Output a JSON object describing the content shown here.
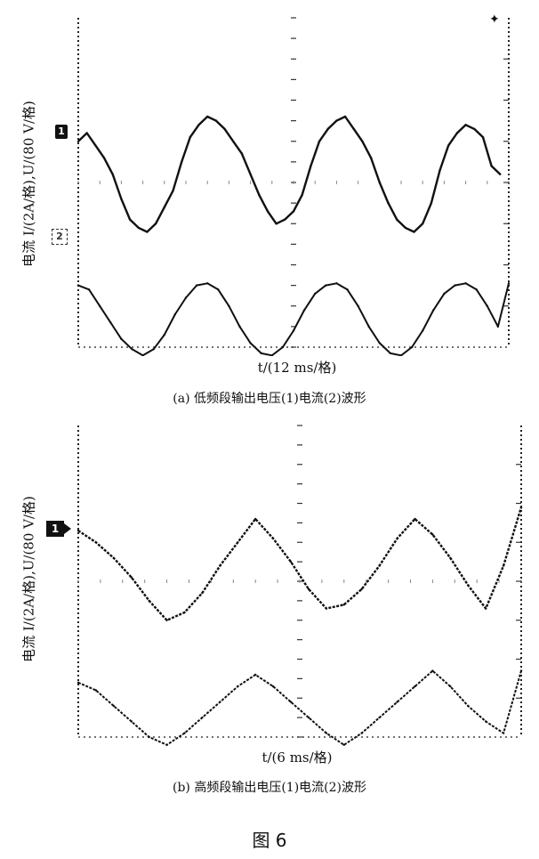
{
  "chart_data": [
    {
      "type": "line",
      "panel": "a",
      "xlabel": "t/(12 ms/格)",
      "ylabel": "电流 I/(2A/格),U/(80 V/格)",
      "caption": "(a) 低频段输出电压(1)电流(2)波形",
      "x_divisions": 10,
      "y_divisions": 8,
      "grid": "dotted center graticule",
      "markers": [
        "1",
        "2"
      ],
      "series": [
        {
          "name": "1",
          "x": [
            0,
            0.2,
            0.4,
            0.6,
            0.8,
            1.0,
            1.2,
            1.4,
            1.6,
            1.8,
            2.0,
            2.2,
            2.4,
            2.6,
            2.8,
            3.0,
            3.2,
            3.4,
            3.6,
            3.8,
            4.0,
            4.2,
            4.4,
            4.6,
            4.8,
            5.0,
            5.2,
            5.4,
            5.6,
            5.8,
            6.0,
            6.2,
            6.4,
            6.6,
            6.8,
            7.0,
            7.2,
            7.4,
            7.6,
            7.8,
            8.0,
            8.2,
            8.4,
            8.6,
            8.8,
            9.0,
            9.2,
            9.4,
            9.6,
            9.8
          ],
          "y": [
            1.0,
            1.2,
            0.9,
            0.6,
            0.2,
            -0.4,
            -0.9,
            -1.1,
            -1.2,
            -1.0,
            -0.6,
            -0.2,
            0.5,
            1.1,
            1.4,
            1.6,
            1.5,
            1.3,
            1.0,
            0.7,
            0.2,
            -0.3,
            -0.7,
            -1.0,
            -0.9,
            -0.7,
            -0.3,
            0.4,
            1.0,
            1.3,
            1.5,
            1.6,
            1.3,
            1.0,
            0.6,
            0.0,
            -0.5,
            -0.9,
            -1.1,
            -1.2,
            -1.0,
            -0.5,
            0.3,
            0.9,
            1.2,
            1.4,
            1.3,
            1.1,
            0.4,
            0.2
          ]
        },
        {
          "name": "2",
          "x": [
            0,
            0.25,
            0.5,
            0.75,
            1.0,
            1.25,
            1.5,
            1.75,
            2.0,
            2.25,
            2.5,
            2.75,
            3.0,
            3.25,
            3.5,
            3.75,
            4.0,
            4.25,
            4.5,
            4.75,
            5.0,
            5.25,
            5.5,
            5.75,
            6.0,
            6.25,
            6.5,
            6.75,
            7.0,
            7.25,
            7.5,
            7.75,
            8.0,
            8.25,
            8.5,
            8.75,
            9.0,
            9.25,
            9.5,
            9.75,
            10.0
          ],
          "y": [
            -2.5,
            -2.6,
            -3.0,
            -3.4,
            -3.8,
            -4.05,
            -4.2,
            -4.05,
            -3.7,
            -3.2,
            -2.8,
            -2.5,
            -2.45,
            -2.6,
            -3.0,
            -3.5,
            -3.9,
            -4.15,
            -4.2,
            -4.0,
            -3.6,
            -3.1,
            -2.7,
            -2.5,
            -2.45,
            -2.6,
            -3.0,
            -3.5,
            -3.9,
            -4.15,
            -4.2,
            -4.0,
            -3.6,
            -3.1,
            -2.7,
            -2.5,
            -2.45,
            -2.6,
            -3.0,
            -3.5,
            -2.45
          ]
        }
      ]
    },
    {
      "type": "line",
      "panel": "b",
      "xlabel": "t/(6 ms/格)",
      "ylabel": "电流 I/(2A/格),U/(80 V/格)",
      "caption": "(b) 高频段输出电压(1)电流(2)波形",
      "x_divisions": 10,
      "y_divisions": 8,
      "grid": "dotted center graticule",
      "markers": [
        "1"
      ],
      "series": [
        {
          "name": "1",
          "x": [
            0,
            0.4,
            0.8,
            1.2,
            1.6,
            2.0,
            2.4,
            2.8,
            3.2,
            3.6,
            4.0,
            4.4,
            4.8,
            5.2,
            5.6,
            6.0,
            6.4,
            6.8,
            7.2,
            7.6,
            8.0,
            8.4,
            8.8,
            9.2,
            9.6,
            10.0
          ],
          "y": [
            1.3,
            1.0,
            0.6,
            0.1,
            -0.5,
            -1.0,
            -0.8,
            -0.3,
            0.4,
            1.0,
            1.6,
            1.1,
            0.5,
            -0.2,
            -0.7,
            -0.6,
            -0.2,
            0.4,
            1.1,
            1.6,
            1.2,
            0.6,
            -0.1,
            -0.7,
            0.4,
            1.9
          ]
        },
        {
          "name": "2",
          "x": [
            0,
            0.4,
            0.8,
            1.2,
            1.6,
            2.0,
            2.4,
            2.8,
            3.2,
            3.6,
            4.0,
            4.4,
            4.8,
            5.2,
            5.6,
            6.0,
            6.4,
            6.8,
            7.2,
            7.6,
            8.0,
            8.4,
            8.8,
            9.2,
            9.6,
            10.0
          ],
          "y": [
            -2.6,
            -2.8,
            -3.2,
            -3.6,
            -4.0,
            -4.2,
            -3.9,
            -3.5,
            -3.1,
            -2.7,
            -2.4,
            -2.7,
            -3.1,
            -3.5,
            -3.9,
            -4.2,
            -3.9,
            -3.5,
            -3.1,
            -2.7,
            -2.3,
            -2.7,
            -3.2,
            -3.6,
            -3.9,
            -2.3
          ]
        }
      ]
    }
  ],
  "figure_title": "图 6"
}
